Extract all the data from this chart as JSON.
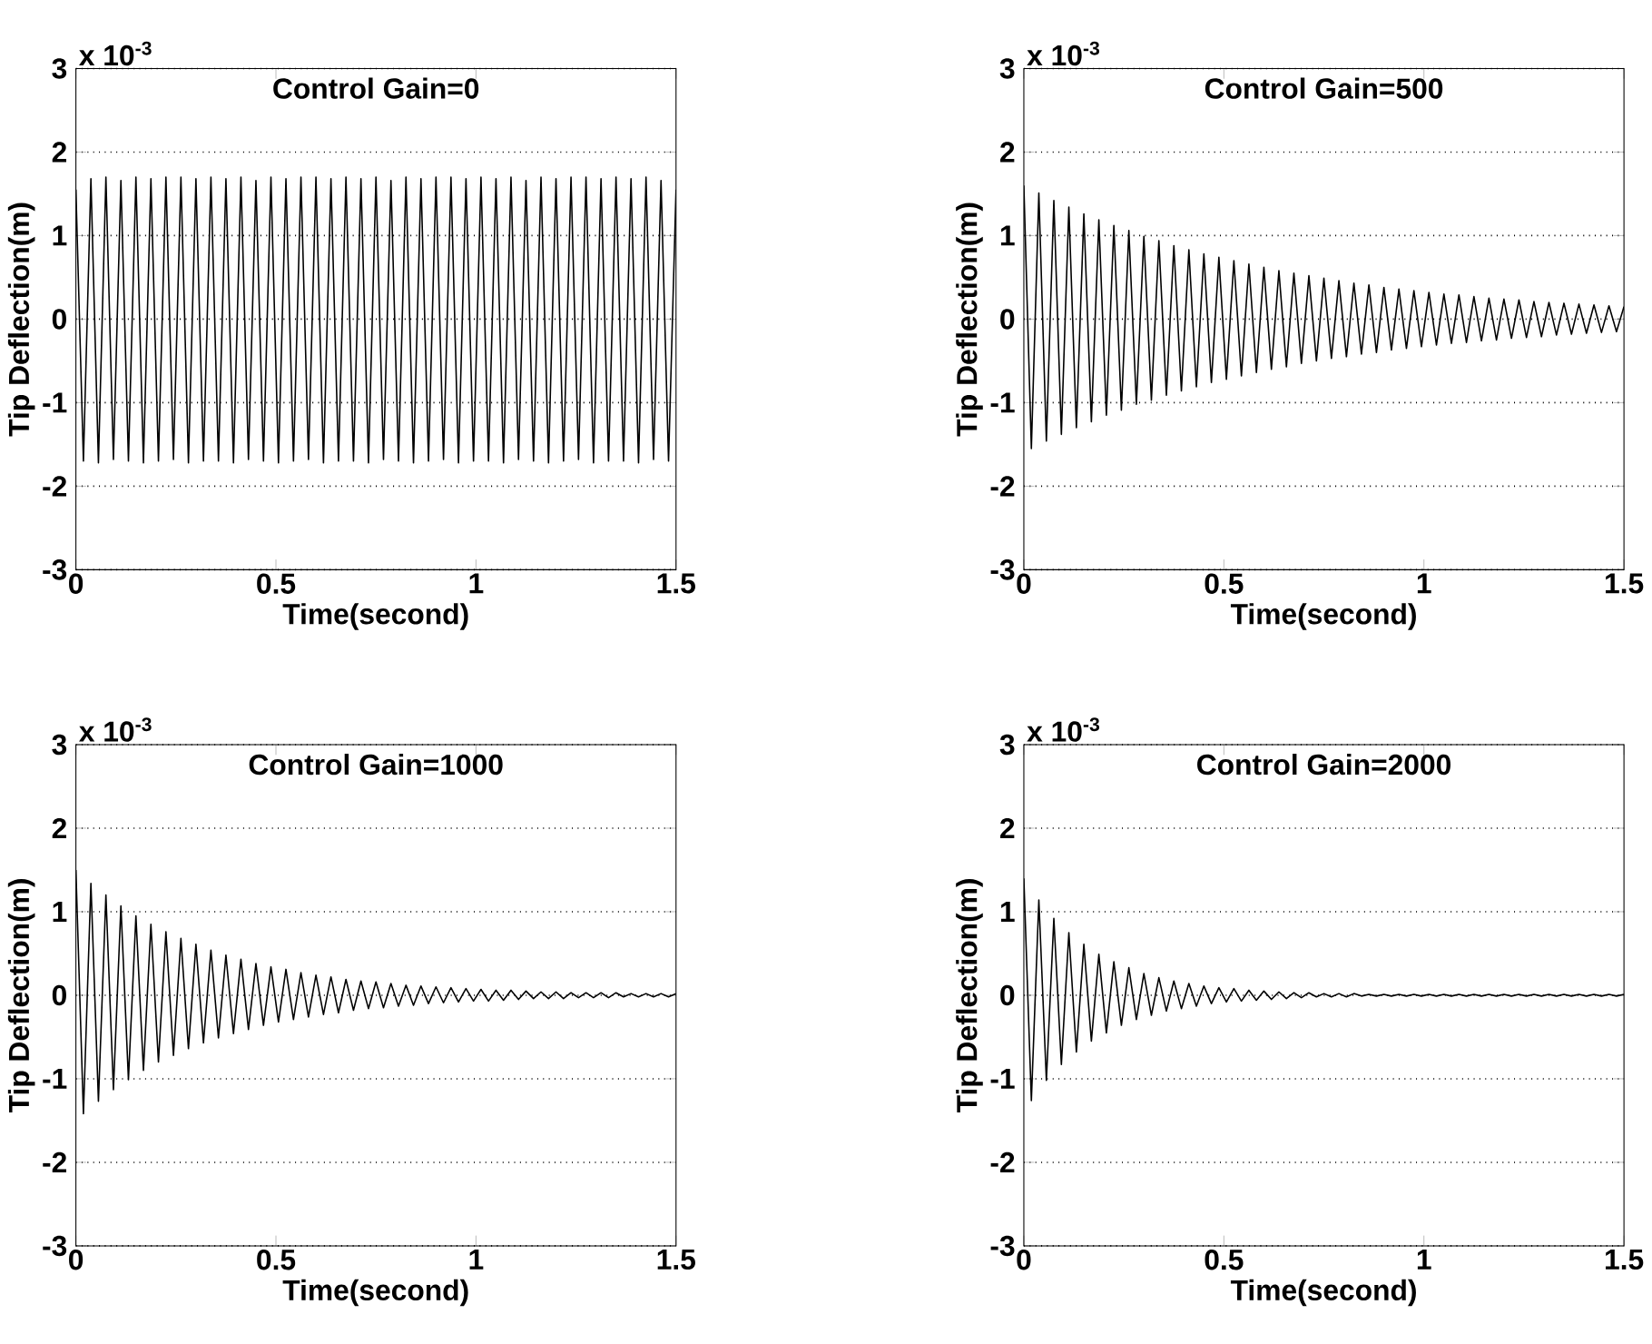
{
  "chart_data": [
    {
      "type": "line",
      "title": "Control Gain=0",
      "xlabel": "Time(second)",
      "ylabel": "Tip Deflection(m)",
      "annotations": [
        "x 10$^{-3}$"
      ],
      "xlim": [
        0,
        1.5
      ],
      "ylim": [
        -3,
        3
      ],
      "xticks": [
        0,
        0.5,
        1,
        1.5
      ],
      "yticks": [
        -3,
        -2,
        -1,
        0,
        1,
        2,
        3
      ],
      "grid": "y",
      "x": [
        0,
        0.0188,
        0.0375,
        0.0563,
        0.075,
        0.0938,
        0.1125,
        0.1313,
        0.15,
        0.1688,
        0.1875,
        0.2063,
        0.225,
        0.2438,
        0.2625,
        0.2813,
        0.3,
        0.3188,
        0.3375,
        0.3563,
        0.375,
        0.3938,
        0.4125,
        0.4313,
        0.45,
        0.4688,
        0.4875,
        0.5063,
        0.525,
        0.5438,
        0.5625,
        0.5813,
        0.6,
        0.6188,
        0.6375,
        0.6563,
        0.675,
        0.6938,
        0.7125,
        0.7313,
        0.75,
        0.7688,
        0.7875,
        0.8063,
        0.825,
        0.8438,
        0.8625,
        0.8813,
        0.9,
        0.9188,
        0.9375,
        0.9563,
        0.975,
        0.9938,
        1.0125,
        1.0313,
        1.05,
        1.0688,
        1.0875,
        1.1063,
        1.125,
        1.1438,
        1.1625,
        1.1813,
        1.2,
        1.2188,
        1.2375,
        1.2563,
        1.275,
        1.2938,
        1.3125,
        1.3313,
        1.35,
        1.3688,
        1.3875,
        1.4063,
        1.425,
        1.4438,
        1.4625,
        1.4813,
        1.5
      ],
      "series": [
        {
          "color": "#000000",
          "values": [
            1.55,
            -1.7,
            1.68,
            -1.72,
            1.7,
            -1.68,
            1.66,
            -1.7,
            1.7,
            -1.72,
            1.68,
            -1.7,
            1.7,
            -1.68,
            1.7,
            -1.72,
            1.68,
            -1.7,
            1.7,
            -1.7,
            1.68,
            -1.72,
            1.7,
            -1.68,
            1.66,
            -1.7,
            1.7,
            -1.72,
            1.68,
            -1.7,
            1.7,
            -1.68,
            1.7,
            -1.72,
            1.68,
            -1.7,
            1.7,
            -1.7,
            1.68,
            -1.72,
            1.7,
            -1.68,
            1.66,
            -1.7,
            1.7,
            -1.72,
            1.68,
            -1.7,
            1.7,
            -1.68,
            1.7,
            -1.72,
            1.68,
            -1.7,
            1.7,
            -1.7,
            1.68,
            -1.72,
            1.7,
            -1.68,
            1.66,
            -1.7,
            1.7,
            -1.72,
            1.68,
            -1.7,
            1.7,
            -1.68,
            1.7,
            -1.72,
            1.68,
            -1.7,
            1.7,
            -1.7,
            1.68,
            -1.72,
            1.7,
            -1.68,
            1.66,
            -1.7,
            1.55
          ]
        }
      ]
    },
    {
      "type": "line",
      "title": "Control Gain=500",
      "xlabel": "Time(second)",
      "ylabel": "Tip Deflection(m)",
      "annotations": [
        "x 10$^{-3}$"
      ],
      "xlim": [
        0,
        1.5
      ],
      "ylim": [
        -3,
        3
      ],
      "xticks": [
        0,
        0.5,
        1,
        1.5
      ],
      "yticks": [
        -3,
        -2,
        -1,
        0,
        1,
        2,
        3
      ],
      "grid": "y",
      "x": [
        0,
        0.0188,
        0.0375,
        0.0563,
        0.075,
        0.0938,
        0.1125,
        0.1313,
        0.15,
        0.1688,
        0.1875,
        0.2063,
        0.225,
        0.2438,
        0.2625,
        0.2813,
        0.3,
        0.3188,
        0.3375,
        0.3563,
        0.375,
        0.3938,
        0.4125,
        0.4313,
        0.45,
        0.4688,
        0.4875,
        0.5063,
        0.525,
        0.5438,
        0.5625,
        0.5813,
        0.6,
        0.6188,
        0.6375,
        0.6563,
        0.675,
        0.6938,
        0.7125,
        0.7313,
        0.75,
        0.7688,
        0.7875,
        0.8063,
        0.825,
        0.8438,
        0.8625,
        0.8813,
        0.9,
        0.9188,
        0.9375,
        0.9563,
        0.975,
        0.9938,
        1.0125,
        1.0313,
        1.05,
        1.0688,
        1.0875,
        1.1063,
        1.125,
        1.1438,
        1.1625,
        1.1813,
        1.2,
        1.2188,
        1.2375,
        1.2563,
        1.275,
        1.2938,
        1.3125,
        1.3313,
        1.35,
        1.3688,
        1.3875,
        1.4063,
        1.425,
        1.4438,
        1.4625,
        1.4813,
        1.5
      ],
      "series": [
        {
          "color": "#000000",
          "values": [
            1.6,
            -1.55,
            1.51,
            -1.46,
            1.42,
            -1.38,
            1.34,
            -1.3,
            1.26,
            -1.23,
            1.19,
            -1.15,
            1.12,
            -1.09,
            1.06,
            -1.02,
            0.99,
            -0.97,
            0.94,
            -0.91,
            0.88,
            -0.86,
            0.83,
            -0.81,
            0.78,
            -0.76,
            0.74,
            -0.72,
            0.7,
            -0.68,
            0.66,
            -0.64,
            0.62,
            -0.6,
            0.58,
            -0.57,
            0.55,
            -0.53,
            0.52,
            -0.5,
            0.49,
            -0.47,
            0.46,
            -0.45,
            0.43,
            -0.42,
            0.41,
            -0.4,
            0.38,
            -0.37,
            0.36,
            -0.35,
            0.34,
            -0.33,
            0.32,
            -0.31,
            0.3,
            -0.29,
            0.29,
            -0.28,
            0.27,
            -0.26,
            0.25,
            -0.25,
            0.24,
            -0.23,
            0.23,
            -0.22,
            0.21,
            -0.21,
            0.2,
            -0.19,
            0.19,
            -0.18,
            0.18,
            -0.17,
            0.17,
            -0.16,
            0.16,
            -0.15,
            0.15
          ]
        }
      ]
    },
    {
      "type": "line",
      "title": "Control Gain=1000",
      "xlabel": "Time(second)",
      "ylabel": "Tip Deflection(m)",
      "annotations": [
        "x 10$^{-3}$"
      ],
      "xlim": [
        0,
        1.5
      ],
      "ylim": [
        -3,
        3
      ],
      "xticks": [
        0,
        0.5,
        1,
        1.5
      ],
      "yticks": [
        -3,
        -2,
        -1,
        0,
        1,
        2,
        3
      ],
      "grid": "y",
      "x": [
        0,
        0.0188,
        0.0375,
        0.0563,
        0.075,
        0.0938,
        0.1125,
        0.1313,
        0.15,
        0.1688,
        0.1875,
        0.2063,
        0.225,
        0.2438,
        0.2625,
        0.2813,
        0.3,
        0.3188,
        0.3375,
        0.3563,
        0.375,
        0.3938,
        0.4125,
        0.4313,
        0.45,
        0.4688,
        0.4875,
        0.5063,
        0.525,
        0.5438,
        0.5625,
        0.5813,
        0.6,
        0.6188,
        0.6375,
        0.6563,
        0.675,
        0.6938,
        0.7125,
        0.7313,
        0.75,
        0.7688,
        0.7875,
        0.8063,
        0.825,
        0.8438,
        0.8625,
        0.8813,
        0.9,
        0.9188,
        0.9375,
        0.9563,
        0.975,
        0.9938,
        1.0125,
        1.0313,
        1.05,
        1.0688,
        1.0875,
        1.1063,
        1.125,
        1.1438,
        1.1625,
        1.1813,
        1.2,
        1.2188,
        1.2375,
        1.2563,
        1.275,
        1.2938,
        1.3125,
        1.3313,
        1.35,
        1.3688,
        1.3875,
        1.4063,
        1.425,
        1.4438,
        1.4625,
        1.4813,
        1.5
      ],
      "series": [
        {
          "color": "#000000",
          "values": [
            1.5,
            -1.42,
            1.34,
            -1.27,
            1.2,
            -1.13,
            1.07,
            -1.01,
            0.95,
            -0.9,
            0.85,
            -0.8,
            0.76,
            -0.72,
            0.68,
            -0.64,
            0.61,
            -0.57,
            0.54,
            -0.51,
            0.48,
            -0.46,
            0.43,
            -0.41,
            0.38,
            -0.36,
            0.34,
            -0.32,
            0.31,
            -0.29,
            0.27,
            -0.26,
            0.24,
            -0.23,
            0.22,
            -0.21,
            0.19,
            -0.18,
            0.17,
            -0.16,
            0.16,
            -0.15,
            0.14,
            -0.13,
            0.12,
            -0.12,
            0.11,
            -0.1,
            0.1,
            -0.09,
            0.09,
            -0.08,
            0.08,
            -0.07,
            0.07,
            -0.07,
            0.06,
            -0.06,
            0.06,
            -0.05,
            0.05,
            -0.04,
            0.04,
            -0.04,
            0.04,
            -0.04,
            0.03,
            -0.03,
            0.03,
            -0.03,
            0.03,
            -0.03,
            0.03,
            -0.02,
            0.02,
            -0.02,
            0.02,
            -0.02,
            0.02,
            -0.02,
            0.02
          ]
        }
      ]
    },
    {
      "type": "line",
      "title": "Control Gain=2000",
      "xlabel": "Time(second)",
      "ylabel": "Tip Deflection(m)",
      "annotations": [
        "x 10$^{-3}$"
      ],
      "xlim": [
        0,
        1.5
      ],
      "ylim": [
        -3,
        3
      ],
      "xticks": [
        0,
        0.5,
        1,
        1.5
      ],
      "yticks": [
        -3,
        -2,
        -1,
        0,
        1,
        2,
        3
      ],
      "grid": "y",
      "x": [
        0,
        0.0188,
        0.0375,
        0.0563,
        0.075,
        0.0938,
        0.1125,
        0.1313,
        0.15,
        0.1688,
        0.1875,
        0.2063,
        0.225,
        0.2438,
        0.2625,
        0.2813,
        0.3,
        0.3188,
        0.3375,
        0.3563,
        0.375,
        0.3938,
        0.4125,
        0.4313,
        0.45,
        0.4688,
        0.4875,
        0.5063,
        0.525,
        0.5438,
        0.5625,
        0.5813,
        0.6,
        0.6188,
        0.6375,
        0.6563,
        0.675,
        0.6938,
        0.7125,
        0.7313,
        0.75,
        0.7688,
        0.7875,
        0.8063,
        0.825,
        0.8438,
        0.8625,
        0.8813,
        0.9,
        0.9188,
        0.9375,
        0.9563,
        0.975,
        0.9938,
        1.0125,
        1.0313,
        1.05,
        1.0688,
        1.0875,
        1.1063,
        1.125,
        1.1438,
        1.1625,
        1.1813,
        1.2,
        1.2188,
        1.2375,
        1.2563,
        1.275,
        1.2938,
        1.3125,
        1.3313,
        1.35,
        1.3688,
        1.3875,
        1.4063,
        1.425,
        1.4438,
        1.4625,
        1.4813,
        1.5
      ],
      "series": [
        {
          "color": "#000000",
          "values": [
            1.4,
            -1.26,
            1.14,
            -1.02,
            0.92,
            -0.83,
            0.75,
            -0.68,
            0.61,
            -0.55,
            0.49,
            -0.45,
            0.4,
            -0.36,
            0.33,
            -0.29,
            0.26,
            -0.24,
            0.21,
            -0.19,
            0.17,
            -0.16,
            0.14,
            -0.13,
            0.11,
            -0.1,
            0.09,
            -0.08,
            0.08,
            -0.07,
            0.06,
            -0.06,
            0.05,
            -0.05,
            0.04,
            -0.04,
            0.03,
            -0.03,
            0.03,
            -0.02,
            0.02,
            -0.02,
            0.02,
            -0.02,
            0.02,
            -0.01,
            0.01,
            -0.01,
            0.01,
            -0.01,
            0.01,
            -0.01,
            0.01,
            -0.01,
            0.01,
            -0.01,
            0.01,
            -0.01,
            0.01,
            -0.01,
            0.01,
            -0.01,
            0.01,
            -0.01,
            0.01,
            -0.01,
            0.01,
            -0.01,
            0.01,
            -0.01,
            0.01,
            -0.01,
            0.01,
            -0.01,
            0.01,
            -0.01,
            0.01,
            -0.01,
            0.01,
            -0.01,
            0.01
          ]
        }
      ]
    }
  ]
}
